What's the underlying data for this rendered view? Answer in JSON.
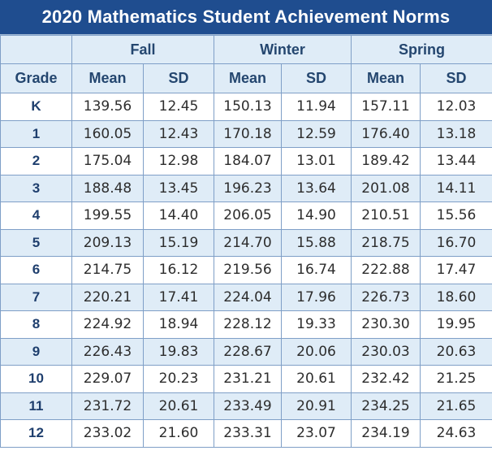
{
  "title": "2020 Mathematics Student Achievement Norms",
  "seasons": [
    "Fall",
    "Winter",
    "Spring"
  ],
  "subheaders": {
    "grade": "Grade",
    "mean": "Mean",
    "sd": "SD"
  },
  "rows": [
    {
      "grade": "K",
      "fall_mean": "139.56",
      "fall_sd": "12.45",
      "winter_mean": "150.13",
      "winter_sd": "11.94",
      "spring_mean": "157.11",
      "spring_sd": "12.03"
    },
    {
      "grade": "1",
      "fall_mean": "160.05",
      "fall_sd": "12.43",
      "winter_mean": "170.18",
      "winter_sd": "12.59",
      "spring_mean": "176.40",
      "spring_sd": "13.18"
    },
    {
      "grade": "2",
      "fall_mean": "175.04",
      "fall_sd": "12.98",
      "winter_mean": "184.07",
      "winter_sd": "13.01",
      "spring_mean": "189.42",
      "spring_sd": "13.44"
    },
    {
      "grade": "3",
      "fall_mean": "188.48",
      "fall_sd": "13.45",
      "winter_mean": "196.23",
      "winter_sd": "13.64",
      "spring_mean": "201.08",
      "spring_sd": "14.11"
    },
    {
      "grade": "4",
      "fall_mean": "199.55",
      "fall_sd": "14.40",
      "winter_mean": "206.05",
      "winter_sd": "14.90",
      "spring_mean": "210.51",
      "spring_sd": "15.56"
    },
    {
      "grade": "5",
      "fall_mean": "209.13",
      "fall_sd": "15.19",
      "winter_mean": "214.70",
      "winter_sd": "15.88",
      "spring_mean": "218.75",
      "spring_sd": "16.70"
    },
    {
      "grade": "6",
      "fall_mean": "214.75",
      "fall_sd": "16.12",
      "winter_mean": "219.56",
      "winter_sd": "16.74",
      "spring_mean": "222.88",
      "spring_sd": "17.47"
    },
    {
      "grade": "7",
      "fall_mean": "220.21",
      "fall_sd": "17.41",
      "winter_mean": "224.04",
      "winter_sd": "17.96",
      "spring_mean": "226.73",
      "spring_sd": "18.60"
    },
    {
      "grade": "8",
      "fall_mean": "224.92",
      "fall_sd": "18.94",
      "winter_mean": "228.12",
      "winter_sd": "19.33",
      "spring_mean": "230.30",
      "spring_sd": "19.95"
    },
    {
      "grade": "9",
      "fall_mean": "226.43",
      "fall_sd": "19.83",
      "winter_mean": "228.67",
      "winter_sd": "20.06",
      "spring_mean": "230.03",
      "spring_sd": "20.63"
    },
    {
      "grade": "10",
      "fall_mean": "229.07",
      "fall_sd": "20.23",
      "winter_mean": "231.21",
      "winter_sd": "20.61",
      "spring_mean": "232.42",
      "spring_sd": "21.25"
    },
    {
      "grade": "11",
      "fall_mean": "231.72",
      "fall_sd": "20.61",
      "winter_mean": "233.49",
      "winter_sd": "20.91",
      "spring_mean": "234.25",
      "spring_sd": "21.65"
    },
    {
      "grade": "12",
      "fall_mean": "233.02",
      "fall_sd": "21.60",
      "winter_mean": "233.31",
      "winter_sd": "23.07",
      "spring_mean": "234.19",
      "spring_sd": "24.63"
    }
  ],
  "colors": {
    "title_bg": "#1f4d8f",
    "header_text": "#24466f",
    "band": "#dfecf7",
    "border": "#7f9fc7"
  }
}
